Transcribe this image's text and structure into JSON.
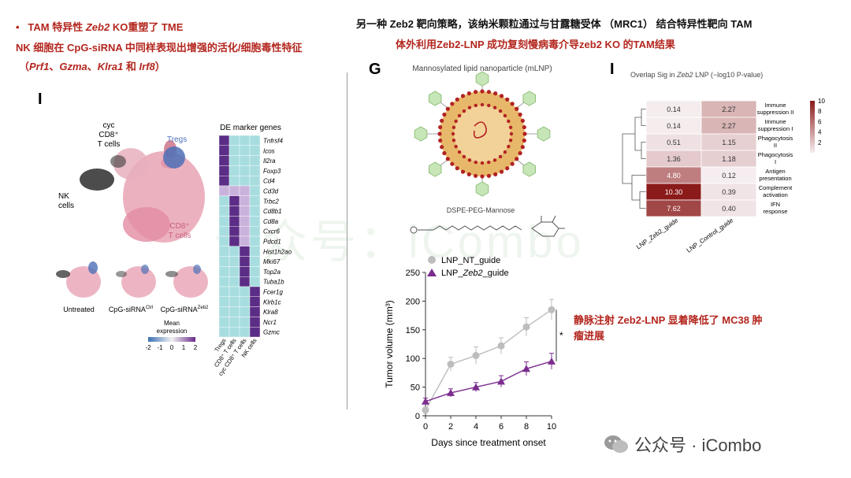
{
  "left_header": {
    "bullet": "•",
    "line1_prefix": "TAM 特异性",
    "line1_gene": "Zeb2",
    "line1_suffix": "KO重塑了 TME",
    "line2": "NK 细胞在 CpG-siRNA 中同样表现出增强的活化/细胞毒性特征",
    "line3_open": "（",
    "line3_g1": "Prf1",
    "line3_sep1": "、",
    "line3_g2": "Gzma",
    "line3_sep2": "、",
    "line3_g3": "Klra1",
    "line3_and": "和",
    "line3_g4": "Irf8",
    "line3_close": "）"
  },
  "right_header": {
    "line1": "另一种 Zeb2 靶向策略，该纳米颗粒通过与甘露糖受体 （MRC1） 结合特异性靶向 TAM",
    "line2": "体外利用Zeb2-LNP 成功复刻慢病毒介导zeb2 KO 的TAM结果"
  },
  "panel_I_left": {
    "letter": "I",
    "clusters": {
      "cyc": "cyc",
      "cd8_top": "CD8⁺",
      "tcells_top": "T cells",
      "tregs": "Tregs",
      "nk": "NK",
      "cells": "cells",
      "cd8_bottom": "CD8⁺",
      "tcells_bottom": "T cells"
    },
    "small_labels": [
      "Untreated",
      "CpG-siRNA",
      "CpG-siRNA"
    ],
    "small_label_sups": [
      "",
      "Ctrl",
      "Zeb2"
    ],
    "legend_title1": "Mean",
    "legend_title2": "expression",
    "legend_ticks": [
      "-2",
      "-1",
      "0",
      "1",
      "2"
    ],
    "heatmap_title": "DE marker genes",
    "genes": [
      "Tnfrsf4",
      "Icos",
      "Il2ra",
      "Foxp3",
      "Cd4",
      "Cd3d",
      "Trbc2",
      "Cd8b1",
      "Cd8a",
      "Cxcr6",
      "Pdcd1",
      "Hist1h2ao",
      "Mki67",
      "Top2a",
      "Tuba1b",
      "Fcer1g",
      "Klrb1c",
      "Klra8",
      "Ncr1",
      "Gzmc"
    ],
    "columns": [
      "Tregs",
      "CD8⁺ T cells",
      "cyc CD8⁺ T cells",
      "NK cells"
    ],
    "heat_values": [
      [
        2,
        0,
        0,
        0
      ],
      [
        2,
        0,
        0,
        0
      ],
      [
        2,
        0,
        0,
        0
      ],
      [
        2,
        0,
        0,
        0
      ],
      [
        2,
        0,
        0,
        0
      ],
      [
        1,
        1,
        1,
        0
      ],
      [
        0,
        2,
        1,
        0
      ],
      [
        0,
        2,
        1,
        0
      ],
      [
        0,
        2,
        1,
        0
      ],
      [
        0,
        2,
        1,
        0
      ],
      [
        0,
        2,
        1,
        0
      ],
      [
        0,
        0,
        2,
        0
      ],
      [
        0,
        0,
        2,
        0
      ],
      [
        0,
        0,
        2,
        0
      ],
      [
        0,
        0,
        2,
        0
      ],
      [
        0,
        0,
        0,
        2
      ],
      [
        0,
        0,
        0,
        2
      ],
      [
        0,
        0,
        0,
        2
      ],
      [
        0,
        0,
        0,
        2
      ],
      [
        0,
        0,
        0,
        2
      ]
    ]
  },
  "panel_G": {
    "letter": "G",
    "title": "Mannosylated lipid nanoparticle (mLNP)",
    "linker_label": "DSPE-PEG-Mannose",
    "colors": {
      "shell": "#e8b86a",
      "core": "#f3d29a",
      "dot": "#b22222",
      "hex": "#c7e6b8",
      "hex_stroke": "#8fbf7a"
    }
  },
  "chart_data": {
    "type": "line",
    "xlabel": "Days since treatment onset",
    "ylabel": "Tumor volume (mm³)",
    "xlim": [
      0,
      10
    ],
    "ylim": [
      0,
      250
    ],
    "x": [
      0,
      2,
      4,
      6,
      8,
      10
    ],
    "xticks": [
      "0",
      "2",
      "4",
      "6",
      "8",
      "10"
    ],
    "yticks": [
      "0",
      "50",
      "100",
      "150",
      "200",
      "250"
    ],
    "series": [
      {
        "name": "LNP_NT_guide",
        "values": [
          10,
          90,
          105,
          122,
          155,
          185
        ],
        "errors": [
          5,
          12,
          15,
          14,
          16,
          18
        ],
        "color": "#bdbdbd",
        "marker": "circle"
      },
      {
        "name": "LNP_Zeb2_guide",
        "values": [
          25,
          40,
          50,
          60,
          82,
          95
        ],
        "errors": [
          6,
          7,
          8,
          10,
          12,
          14
        ],
        "color": "#7b2d8e",
        "marker": "triangle"
      }
    ],
    "legend": [
      {
        "prefix": "LNP_NT_guide",
        "italic": "",
        "suffix": ""
      },
      {
        "prefix": "LNP_",
        "italic": "Zeb2",
        "suffix": "_guide"
      }
    ],
    "significance": "*",
    "annotation_line1": "静脉注射 Zeb2-LNP 显着降低了 MC38 肿",
    "annotation_line2": "瘤进展"
  },
  "panel_I_right": {
    "letter": "I",
    "title_prefix": "Overlap Sig in",
    "title_italic": "Zeb2",
    "title_suffix": "LNP (−log10 P-value)",
    "rows": [
      {
        "label1": "Immune",
        "label2": "suppression II",
        "v1": "0.14",
        "v2": "2.27",
        "n1": 0.14,
        "n2": 2.27
      },
      {
        "label1": "Immune",
        "label2": "suppression I",
        "v1": "0.14",
        "v2": "2.27",
        "n1": 0.14,
        "n2": 2.27
      },
      {
        "label1": "Phagocytosis",
        "label2": "II",
        "v1": "0.51",
        "v2": "1.15",
        "n1": 0.51,
        "n2": 1.15
      },
      {
        "label1": "Phagocytosis",
        "label2": "I",
        "v1": "1.36",
        "v2": "1.18",
        "n1": 1.36,
        "n2": 1.18
      },
      {
        "label1": "Antigen",
        "label2": "presentation",
        "v1": "4.80",
        "v2": "0.12",
        "n1": 4.8,
        "n2": 0.12
      },
      {
        "label1": "Complement",
        "label2": "activation",
        "v1": "10.30",
        "v2": "0.39",
        "n1": 10.3,
        "n2": 0.39
      },
      {
        "label1": "IFN",
        "label2": "response",
        "v1": "7.62",
        "v2": "0.40",
        "n1": 7.62,
        "n2": 0.4
      }
    ],
    "col_labels": [
      "LNP_Zeb2_guide",
      "LNP_Control_guide"
    ],
    "colorbar_ticks": [
      "10",
      "8",
      "6",
      "4",
      "2"
    ],
    "colorbar_max": 10
  },
  "watermark": "公众号：iCombo",
  "footer_brand": "公众号 · iCombo"
}
